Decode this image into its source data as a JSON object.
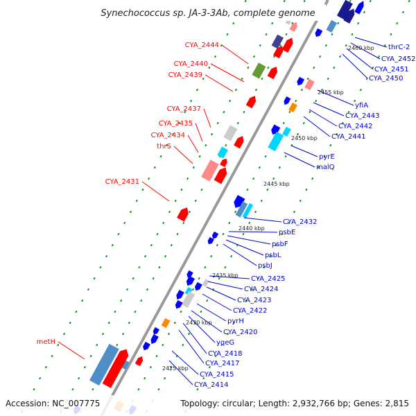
{
  "title": "Synechococcus sp. JA-3-3Ab, complete genome",
  "footer": {
    "accession": "Accession: NC_007775",
    "topology": "Topology: circular; Length: 2,932,766 bp; Genes: 2,815"
  },
  "colors": {
    "forward_label": "#ff0000",
    "reverse_label": "#0000cc",
    "backbone": "#999999",
    "forward_gene": "#ff0000",
    "reverse_gene": "#0000ff",
    "cyan_gene": "#00d4ff",
    "steelblue_gene": "#4f8fc8",
    "navy_gene": "#1a1a8c",
    "gray_gene": "#cccccc",
    "pink_gene": "#ff8888",
    "olive_gene": "#669933",
    "orange_gene": "#ff8800",
    "purple_gene": "#404090",
    "tick": "#228b22"
  },
  "kbp_ticks": [
    "2460 kbp",
    "2455 kbp",
    "2450 kbp",
    "2445 kbp",
    "2440 kbp",
    "2435 kbp",
    "2430 kbp",
    "2425 kbp"
  ],
  "forward_labels": [
    "CYA_2444",
    "CYA_2440",
    "CYA_2439",
    "CYA_2437",
    "CYA_2435",
    "CYA_2434",
    "thrS",
    "CYA_2431",
    "metH"
  ],
  "reverse_labels": [
    "thrC-2",
    "CYA_2452",
    "CYA_2451",
    "CYA_2450",
    "yfiA",
    "CYA_2443",
    "CYA_2442",
    "CYA_2441",
    "pyrE",
    "malQ",
    "CYA_2432",
    "psbE",
    "psbF",
    "psbL",
    "psbJ",
    "CYA_2425",
    "CYA_2424",
    "CYA_2423",
    "CYA_2422",
    "pyrH",
    "CYA_2420",
    "yqeG",
    "CYA_2418",
    "CYA_2417",
    "CYA_2415",
    "CYA_2414"
  ]
}
